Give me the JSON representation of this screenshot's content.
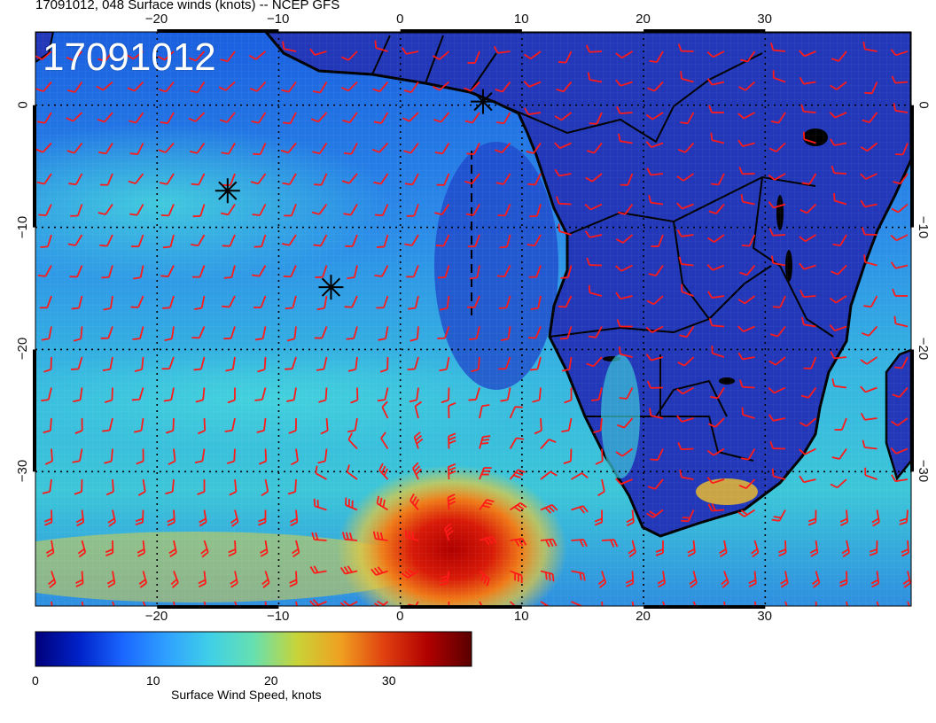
{
  "header": {
    "title": "17091012, 048 Surface winds (knots) -- NCEP GFS",
    "stamp": "17091012"
  },
  "map": {
    "lon_range": [
      -30,
      42
    ],
    "lat_range": [
      -41,
      6
    ],
    "lon_ticks": [
      {
        "value": -20,
        "label": "−20"
      },
      {
        "value": -10,
        "label": "−10"
      },
      {
        "value": 0,
        "label": "0"
      },
      {
        "value": 10,
        "label": "10"
      },
      {
        "value": 20,
        "label": "20"
      },
      {
        "value": 30,
        "label": "30"
      }
    ],
    "lat_ticks": [
      {
        "value": 0,
        "label": "0"
      },
      {
        "value": -10,
        "label": "−10"
      },
      {
        "value": -20,
        "label": "−20"
      },
      {
        "value": -30,
        "label": "−30"
      }
    ],
    "markers": [
      {
        "lon": 6.8,
        "lat": 0.3
      },
      {
        "lon": -14.2,
        "lat": -7.0
      },
      {
        "lon": -5.7,
        "lat": -14.9
      }
    ],
    "colors": {
      "ocean": "#2f7fe0",
      "land": "#2238b8",
      "barb": "#ff1a1a",
      "coast": "#000000",
      "grid": "#000000"
    }
  },
  "colorbar": {
    "title": "Surface Wind Speed, knots",
    "min": 0,
    "max": 37,
    "ticks": [
      {
        "value": 0,
        "label": "0"
      },
      {
        "value": 10,
        "label": "10"
      },
      {
        "value": 20,
        "label": "20"
      },
      {
        "value": 30,
        "label": "30"
      }
    ],
    "colors": [
      "#00007a",
      "#0022c8",
      "#1a66ff",
      "#2fa0ff",
      "#3fd0e8",
      "#66e0b0",
      "#c8d438",
      "#f0a020",
      "#e04010",
      "#b00000",
      "#5a0000"
    ]
  }
}
